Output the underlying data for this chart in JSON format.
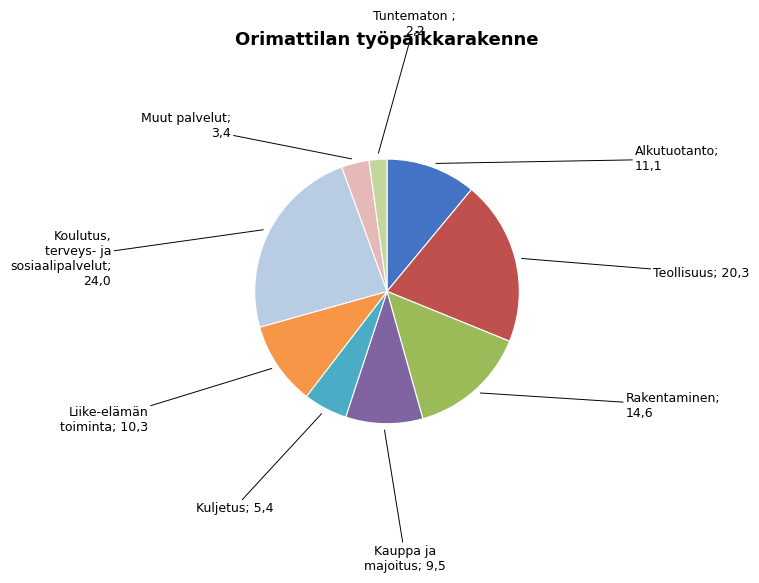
{
  "title": "Orimattilan työpaikkarakenne",
  "slices": [
    {
      "label": "Alkutuotanto;\n11,1",
      "value": 11.1,
      "color": "#4472C4"
    },
    {
      "label": "Teollisuus; 20,3",
      "value": 20.3,
      "color": "#C0504D"
    },
    {
      "label": "Rakentaminen;\n14,6",
      "value": 14.6,
      "color": "#9BBB59"
    },
    {
      "label": "Kauppa ja\nmajoitus; 9,5",
      "value": 9.5,
      "color": "#8064A2"
    },
    {
      "label": "Kuljetus; 5,4",
      "value": 5.4,
      "color": "#4BACC6"
    },
    {
      "label": "Liike-elämän\ntoiminta; 10,3",
      "value": 10.3,
      "color": "#F79646"
    },
    {
      "label": "Koulutus,\nterveys- ja\nsosiaalipalvelut;\n24,0",
      "value": 24.0,
      "color": "#B8CCE4"
    },
    {
      "label": "Muut palvelut;\n3,4",
      "value": 3.4,
      "color": "#E6B9B8"
    },
    {
      "label": "Tuntematon ;\n2,2",
      "value": 2.2,
      "color": "#C4D79B"
    }
  ],
  "background_color": "#FFFFFF",
  "title_fontsize": 13,
  "label_fontsize": 9,
  "label_configs": [
    {
      "ha": "left",
      "va": "center",
      "xt": 1.35,
      "yt": 0.72
    },
    {
      "ha": "left",
      "va": "center",
      "xt": 1.45,
      "yt": 0.1
    },
    {
      "ha": "left",
      "va": "center",
      "xt": 1.3,
      "yt": -0.62
    },
    {
      "ha": "center",
      "va": "top",
      "xt": 0.1,
      "yt": -1.38
    },
    {
      "ha": "right",
      "va": "center",
      "xt": -0.62,
      "yt": -1.18
    },
    {
      "ha": "right",
      "va": "center",
      "xt": -1.3,
      "yt": -0.7
    },
    {
      "ha": "right",
      "va": "center",
      "xt": -1.5,
      "yt": 0.18
    },
    {
      "ha": "right",
      "va": "center",
      "xt": -0.85,
      "yt": 0.9
    },
    {
      "ha": "center",
      "va": "bottom",
      "xt": 0.15,
      "yt": 1.38
    }
  ]
}
